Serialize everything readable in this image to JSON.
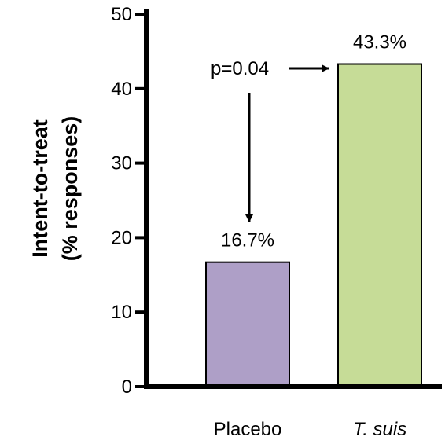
{
  "chart_data": {
    "type": "bar",
    "categories": [
      "Placebo",
      "T. suis"
    ],
    "values": [
      16.7,
      43.3
    ],
    "value_labels": [
      "16.7%",
      "43.3%"
    ],
    "colors": [
      "#ae9fc7",
      "#c6dc97"
    ],
    "ylabel_line1": "Intent-to-treat",
    "ylabel_line2": "(% responses)",
    "ylim": [
      0,
      50
    ],
    "yticks": [
      0,
      10,
      20,
      30,
      40,
      50
    ],
    "grid": false,
    "annotation": {
      "text": "p=0.04",
      "arrows": [
        "T. suis",
        "Placebo"
      ]
    }
  }
}
